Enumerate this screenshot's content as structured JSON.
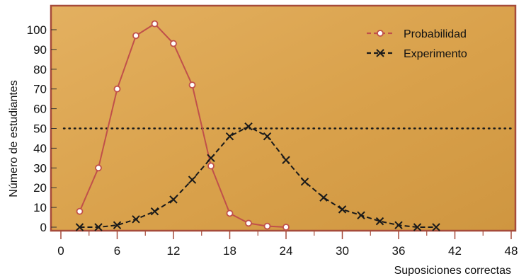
{
  "chart_data": {
    "type": "line",
    "xlabel": "Suposiciones correctas",
    "ylabel": "Número de estudiantes",
    "xlim": [
      0,
      48
    ],
    "ylim": [
      0,
      100
    ],
    "x_ticks": [
      0,
      6,
      12,
      18,
      24,
      30,
      36,
      42,
      48
    ],
    "y_ticks": [
      0,
      10,
      20,
      30,
      40,
      50,
      60,
      70,
      80,
      90,
      100
    ],
    "reference_line": {
      "y": 50,
      "style": "dotted"
    },
    "legend_position": "top-right",
    "series": [
      {
        "name": "Probabilidad",
        "color": "#c0504a",
        "marker": "open-circle",
        "style": "solid",
        "points": [
          [
            2,
            8
          ],
          [
            4,
            30
          ],
          [
            6,
            70
          ],
          [
            8,
            97
          ],
          [
            10,
            103
          ],
          [
            12,
            93
          ],
          [
            14,
            72
          ],
          [
            16,
            31
          ],
          [
            18,
            7
          ],
          [
            20,
            2
          ],
          [
            22,
            0.5
          ],
          [
            24,
            0
          ]
        ]
      },
      {
        "name": "Experimento",
        "color": "#1a1a1a",
        "marker": "x",
        "style": "dashed",
        "points": [
          [
            2,
            0
          ],
          [
            4,
            0
          ],
          [
            6,
            1
          ],
          [
            8,
            4
          ],
          [
            10,
            8
          ],
          [
            12,
            14
          ],
          [
            14,
            24
          ],
          [
            16,
            35
          ],
          [
            18,
            46
          ],
          [
            20,
            51
          ],
          [
            22,
            46
          ],
          [
            24,
            34
          ],
          [
            26,
            23
          ],
          [
            28,
            15
          ],
          [
            30,
            9
          ],
          [
            32,
            6
          ],
          [
            34,
            3
          ],
          [
            36,
            1
          ],
          [
            38,
            0
          ],
          [
            40,
            0
          ]
        ]
      }
    ]
  }
}
